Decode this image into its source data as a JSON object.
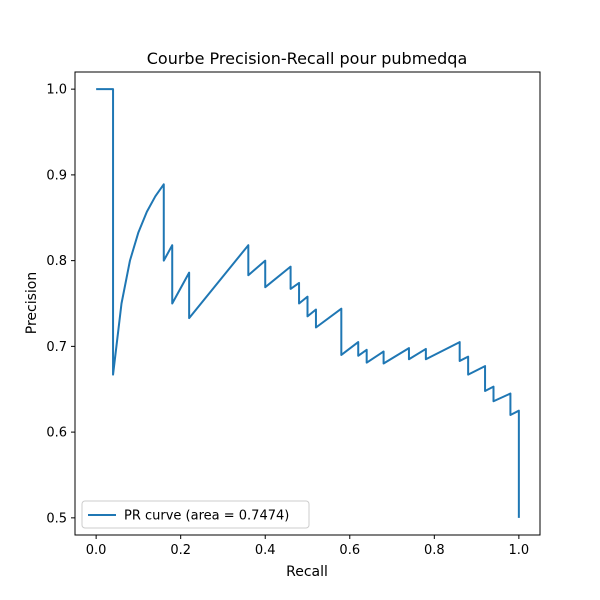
{
  "chart_data": {
    "type": "line",
    "title": "Courbe Precision-Recall pour pubmedqa",
    "xlabel": "Recall",
    "ylabel": "Precision",
    "xlim": [
      -0.05,
      1.05
    ],
    "ylim": [
      0.48,
      1.02
    ],
    "xticks": [
      0.0,
      0.2,
      0.4,
      0.6,
      0.8,
      1.0
    ],
    "yticks": [
      0.5,
      0.6,
      0.7,
      0.8,
      0.9,
      1.0
    ],
    "xtick_labels": [
      "0.0",
      "0.2",
      "0.4",
      "0.6",
      "0.8",
      "1.0"
    ],
    "ytick_labels": [
      "0.5",
      "0.6",
      "0.7",
      "0.8",
      "0.9",
      "1.0"
    ],
    "grid": false,
    "legend_position": "lower-left",
    "series": [
      {
        "name": "PR curve (area = 0.7474)",
        "color": "#1f77b4",
        "x": [
          0.0,
          0.04,
          0.04,
          0.06,
          0.08,
          0.1,
          0.12,
          0.14,
          0.16,
          0.16,
          0.18,
          0.18,
          0.22,
          0.22,
          0.36,
          0.36,
          0.4,
          0.4,
          0.46,
          0.46,
          0.48,
          0.48,
          0.5,
          0.5,
          0.52,
          0.52,
          0.58,
          0.58,
          0.62,
          0.62,
          0.64,
          0.64,
          0.68,
          0.68,
          0.74,
          0.74,
          0.78,
          0.78,
          0.86,
          0.86,
          0.88,
          0.88,
          0.92,
          0.92,
          0.94,
          0.94,
          0.98,
          0.98,
          1.0,
          1.0
        ],
        "y": [
          1.0,
          1.0,
          0.667,
          0.75,
          0.8,
          0.833,
          0.857,
          0.875,
          0.889,
          0.8,
          0.818,
          0.75,
          0.786,
          0.733,
          0.818,
          0.783,
          0.8,
          0.769,
          0.793,
          0.767,
          0.774,
          0.75,
          0.758,
          0.735,
          0.743,
          0.722,
          0.744,
          0.69,
          0.705,
          0.689,
          0.696,
          0.681,
          0.694,
          0.68,
          0.698,
          0.685,
          0.697,
          0.685,
          0.705,
          0.683,
          0.688,
          0.667,
          0.677,
          0.648,
          0.653,
          0.636,
          0.645,
          0.62,
          0.625,
          0.5
        ]
      }
    ]
  }
}
